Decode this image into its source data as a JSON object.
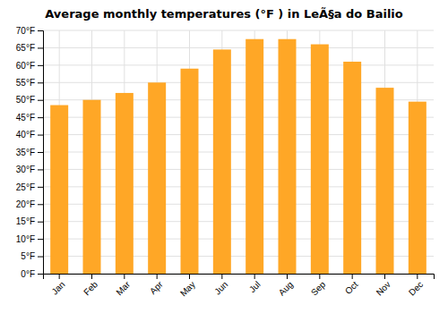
{
  "chart_data": {
    "type": "bar",
    "title": "Average monthly temperatures (°F ) in LeÃ§a do Bailio",
    "categories": [
      "Jan",
      "Feb",
      "Mar",
      "Apr",
      "May",
      "Jun",
      "Jul",
      "Aug",
      "Sep",
      "Oct",
      "Nov",
      "Dec"
    ],
    "values": [
      48.5,
      50.0,
      52.0,
      55.0,
      59.0,
      64.5,
      67.5,
      67.5,
      66.0,
      61.0,
      53.5,
      49.5
    ],
    "color": "#FFA726",
    "ylim": [
      0,
      70
    ],
    "yticks": [
      {
        "value": 0,
        "label": "0°F"
      },
      {
        "value": 5,
        "label": "5°F"
      },
      {
        "value": 10,
        "label": "10°F"
      },
      {
        "value": 15,
        "label": "15°F"
      },
      {
        "value": 20,
        "label": "20°F"
      },
      {
        "value": 25,
        "label": "25°F"
      },
      {
        "value": 30,
        "label": "30°F"
      },
      {
        "value": 35,
        "label": "35°F"
      },
      {
        "value": 40,
        "label": "40°F"
      },
      {
        "value": 45,
        "label": "45°F"
      },
      {
        "value": 50,
        "label": "50°F"
      },
      {
        "value": 55,
        "label": "55°F"
      },
      {
        "value": 60,
        "label": "60°F"
      },
      {
        "value": 65,
        "label": "65°F"
      },
      {
        "value": 70,
        "label": "70°F"
      }
    ],
    "grid": true
  }
}
